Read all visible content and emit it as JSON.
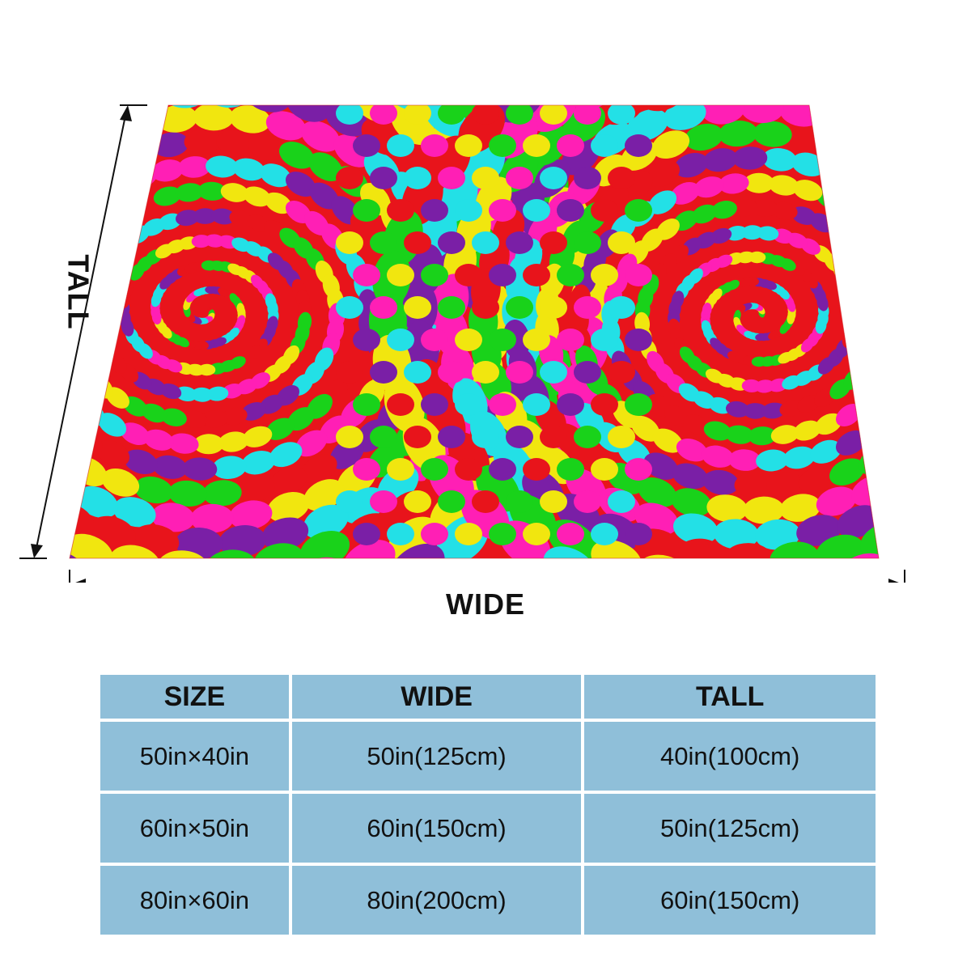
{
  "diagram": {
    "wide_label": "WIDE",
    "tall_label": "TALL"
  },
  "product_image": {
    "pattern": "double spiral fractal",
    "colors": [
      "#e8141b",
      "#19d21a",
      "#f1e60f",
      "#ff1fb5",
      "#23e0e6",
      "#7a1fa6"
    ]
  },
  "size_table": {
    "headers": [
      "SIZE",
      "WIDE",
      "TALL"
    ],
    "rows": [
      [
        "50in×40in",
        "50in(125cm)",
        "40in(100cm)"
      ],
      [
        "60in×50in",
        "60in(150cm)",
        "50in(125cm)"
      ],
      [
        "80in×60in",
        "80in(200cm)",
        "60in(150cm)"
      ]
    ],
    "cell_color": "#8fbfd9"
  }
}
